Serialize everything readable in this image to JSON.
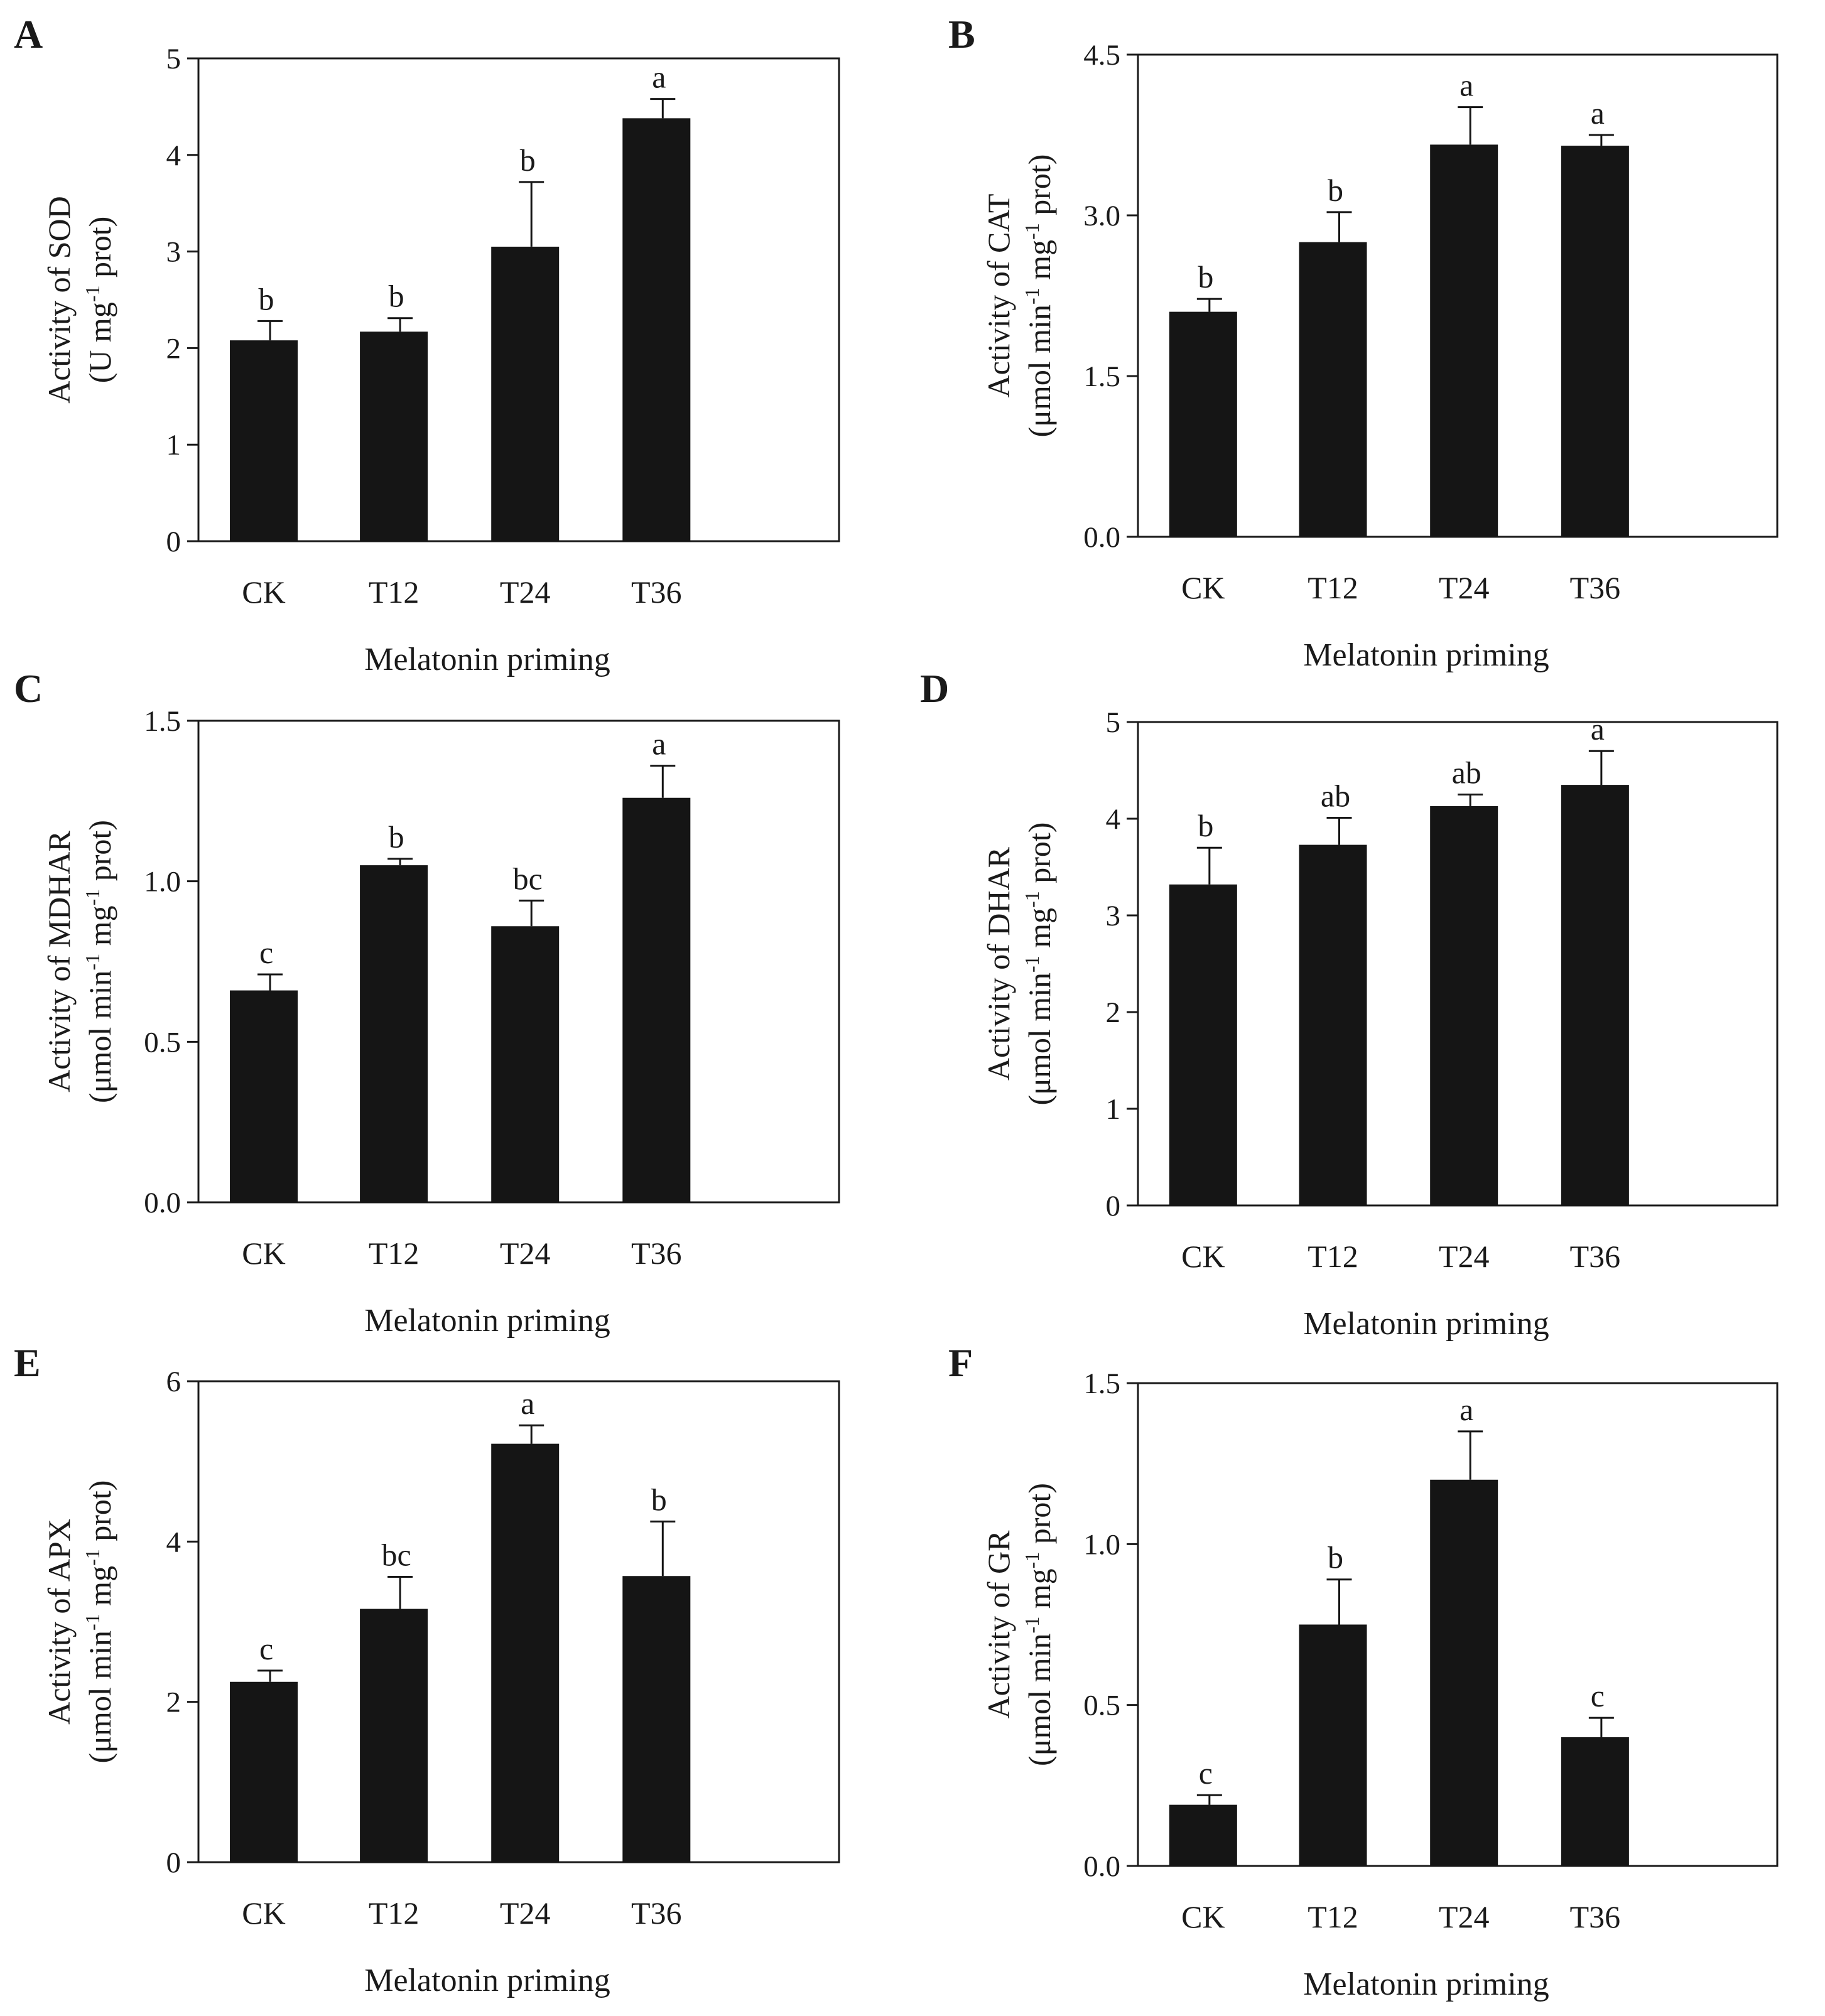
{
  "chart_data": [
    {
      "type": "bar",
      "panel": "A",
      "categories": [
        "CK",
        "T12",
        "T24",
        "T36"
      ],
      "values": [
        2.08,
        2.17,
        3.05,
        4.38
      ],
      "errors": [
        0.2,
        0.14,
        0.67,
        0.2
      ],
      "significance": [
        "b",
        "b",
        "b",
        "a"
      ],
      "ylim": [
        0,
        5
      ],
      "yticks": [
        "0",
        "1",
        "2",
        "3",
        "4",
        "5"
      ],
      "ylabel_line1": "Activity of SOD",
      "ylabel_line2": [
        "(U mg",
        "-1",
        " prot)"
      ],
      "xlabel": "Melatonin priming"
    },
    {
      "type": "bar",
      "panel": "B",
      "categories": [
        "CK",
        "T12",
        "T24",
        "T36"
      ],
      "values": [
        2.1,
        2.75,
        3.66,
        3.65
      ],
      "errors": [
        0.12,
        0.28,
        0.35,
        0.1
      ],
      "significance": [
        "b",
        "b",
        "a",
        "a"
      ],
      "ylim": [
        0,
        4.5
      ],
      "yticks": [
        "0.0",
        "1.5",
        "3.0",
        "4.5"
      ],
      "ylabel_line1": "Activity of CAT",
      "ylabel_line2": [
        "(μmol min",
        "-1",
        " mg",
        "-1",
        " prot)"
      ],
      "xlabel": "Melatonin priming"
    },
    {
      "type": "bar",
      "panel": "C",
      "categories": [
        "CK",
        "T12",
        "T24",
        "T36"
      ],
      "values": [
        0.66,
        1.05,
        0.86,
        1.26
      ],
      "errors": [
        0.05,
        0.02,
        0.08,
        0.1
      ],
      "significance": [
        "c",
        "b",
        "bc",
        "a"
      ],
      "ylim": [
        0,
        1.5
      ],
      "yticks": [
        "0.0",
        "0.5",
        "1.0",
        "1.5"
      ],
      "ylabel_line1": "Activity of MDHAR",
      "ylabel_line2": [
        "(μmol min",
        "-1",
        " mg",
        "-1",
        " prot)"
      ],
      "xlabel": "Melatonin priming"
    },
    {
      "type": "bar",
      "panel": "D",
      "categories": [
        "CK",
        "T12",
        "T24",
        "T36"
      ],
      "values": [
        3.32,
        3.73,
        4.13,
        4.35
      ],
      "errors": [
        0.38,
        0.28,
        0.12,
        0.35
      ],
      "significance": [
        "b",
        "ab",
        "ab",
        "a"
      ],
      "ylim": [
        0,
        5
      ],
      "yticks": [
        "0",
        "1",
        "2",
        "3",
        "4",
        "5"
      ],
      "ylabel_line1": "Activity of DHAR",
      "ylabel_line2": [
        "(μmol min",
        "-1",
        " mg",
        "-1",
        " prot)"
      ],
      "xlabel": "Melatonin priming"
    },
    {
      "type": "bar",
      "panel": "E",
      "categories": [
        "CK",
        "T12",
        "T24",
        "T36"
      ],
      "values": [
        2.25,
        3.16,
        5.22,
        3.57
      ],
      "errors": [
        0.14,
        0.4,
        0.23,
        0.68
      ],
      "significance": [
        "c",
        "bc",
        "a",
        "b"
      ],
      "ylim": [
        0,
        6
      ],
      "yticks": [
        "0",
        "2",
        "4",
        "6"
      ],
      "ylabel_line1": "Activity of APX",
      "ylabel_line2": [
        "(μmol min",
        "-1",
        " mg",
        "-1",
        " prot)"
      ],
      "xlabel": "Melatonin priming"
    },
    {
      "type": "bar",
      "panel": "F",
      "categories": [
        "CK",
        "T12",
        "T24",
        "T36"
      ],
      "values": [
        0.19,
        0.75,
        1.2,
        0.4
      ],
      "errors": [
        0.03,
        0.14,
        0.15,
        0.06
      ],
      "significance": [
        "c",
        "b",
        "a",
        "c"
      ],
      "ylim": [
        0,
        1.5
      ],
      "yticks": [
        "0.0",
        "0.5",
        "1.0",
        "1.5"
      ],
      "ylabel_line1": "Activity of GR",
      "ylabel_line2": [
        "(μmol min",
        "-1",
        " mg",
        "-1",
        " prot)"
      ],
      "xlabel": "Melatonin priming"
    }
  ]
}
